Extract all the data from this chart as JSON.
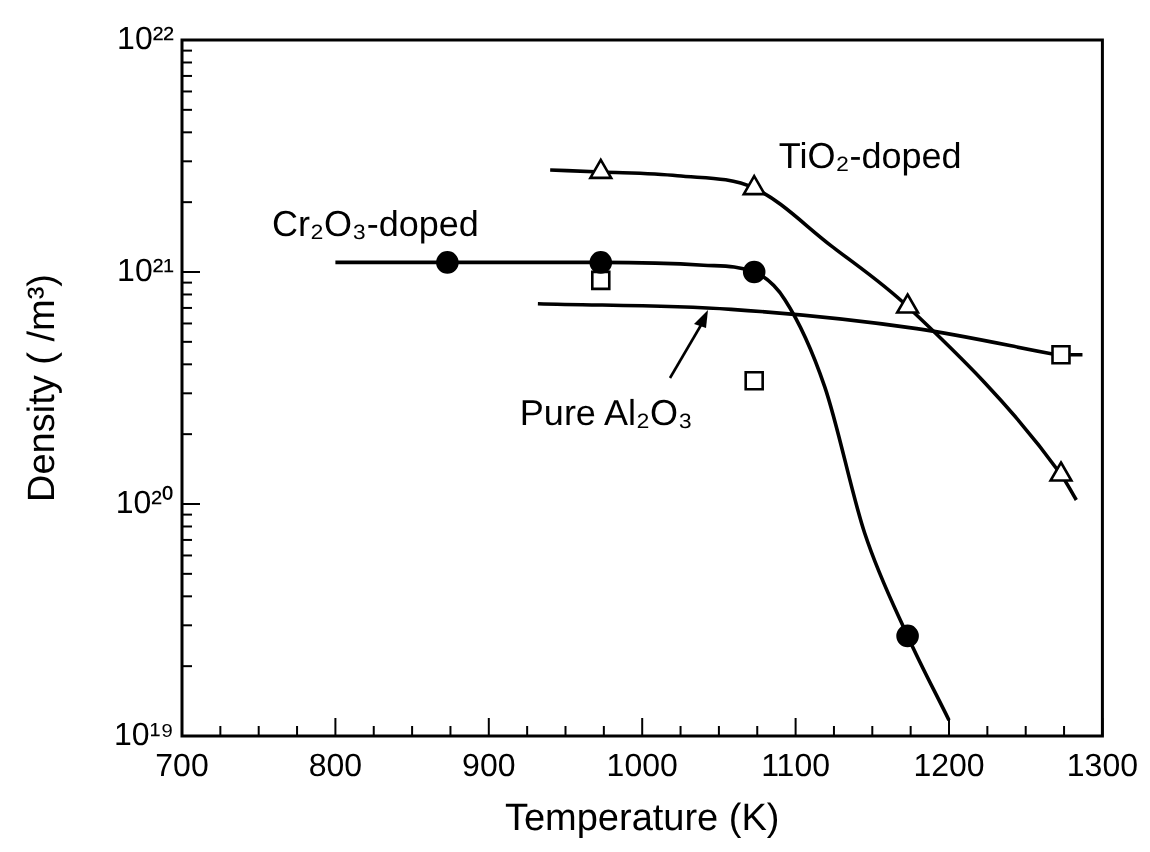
{
  "chart_data": {
    "type": "scatter",
    "xlabel": "Temperature (K)",
    "ylabel": "Density ( /m³)",
    "log": "y",
    "grid": false,
    "xlim": [
      700,
      1300
    ],
    "ylim": [
      1e+19,
      1e+22
    ],
    "xticks": [
      700,
      {
        "value": 725,
        "label": null
      },
      {
        "value": 750,
        "label": null
      },
      {
        "value": 775,
        "label": null
      },
      800,
      {
        "value": 825,
        "label": null
      },
      {
        "value": 850,
        "label": null
      },
      {
        "value": 875,
        "label": null
      },
      900,
      {
        "value": 925,
        "label": null
      },
      {
        "value": 950,
        "label": null
      },
      {
        "value": 975,
        "label": null
      },
      1000,
      {
        "value": 1025,
        "label": null
      },
      {
        "value": 1050,
        "label": null
      },
      {
        "value": 1075,
        "label": null
      },
      1100,
      {
        "value": 1125,
        "label": null
      },
      {
        "value": 1150,
        "label": null
      },
      {
        "value": 1175,
        "label": null
      },
      1200,
      {
        "value": 1225,
        "label": null
      },
      {
        "value": 1250,
        "label": null
      },
      {
        "value": 1275,
        "label": null
      },
      1300
    ],
    "yticks": [
      {
        "value": 1e+19,
        "label": "10¹⁹"
      },
      {
        "value": 2e+19,
        "label": null
      },
      {
        "value": 3e+19,
        "label": null
      },
      {
        "value": 4e+19,
        "label": null
      },
      {
        "value": 5e+19,
        "label": null
      },
      {
        "value": 6e+19,
        "label": null
      },
      {
        "value": 7e+19,
        "label": null
      },
      {
        "value": 8e+19,
        "label": null
      },
      {
        "value": 9e+19,
        "label": null
      },
      {
        "value": 1e+20,
        "label": "10²⁰"
      },
      {
        "value": 2e+20,
        "label": null
      },
      {
        "value": 3e+20,
        "label": null
      },
      {
        "value": 4e+20,
        "label": null
      },
      {
        "value": 5e+20,
        "label": null
      },
      {
        "value": 6e+20,
        "label": null
      },
      {
        "value": 7e+20,
        "label": null
      },
      {
        "value": 8e+20,
        "label": null
      },
      {
        "value": 9e+20,
        "label": null
      },
      {
        "value": 1e+21,
        "label": "10²¹"
      },
      {
        "value": 2e+21,
        "label": null
      },
      {
        "value": 3e+21,
        "label": null
      },
      {
        "value": 4e+21,
        "label": null
      },
      {
        "value": 5e+21,
        "label": null
      },
      {
        "value": 6e+21,
        "label": null
      },
      {
        "value": 7e+21,
        "label": null
      },
      {
        "value": 8e+21,
        "label": null
      },
      {
        "value": 9e+21,
        "label": null
      },
      {
        "value": 1e+22,
        "label": "10²²"
      }
    ],
    "series": [
      {
        "name": "Cr₂O₃-doped",
        "type": "scatter",
        "marker": "circle",
        "color": "#000000",
        "x": [
          873,
          973,
          1073,
          1173
        ],
        "values": [
          1.1e+21,
          1.1e+21,
          1e+21,
          2.7e+19
        ]
      },
      {
        "name": "TiO₂-doped",
        "type": "scatter",
        "marker": "triangle",
        "color": "#000000",
        "x": [
          973,
          1073,
          1173,
          1273
        ],
        "values": [
          2.7e+21,
          2.3e+21,
          7.1e+20,
          1.34e+20
        ]
      },
      {
        "name": "Pure Al₂O₃",
        "type": "scatter",
        "marker": "square",
        "color": "#000000",
        "x": [
          973,
          1073,
          1273
        ],
        "values": [
          9.2e+20,
          3.4e+20,
          4.4e+20
        ]
      },
      {
        "type": "line",
        "marker": "none",
        "color": "#000000",
        "x": [
          800,
          873,
          973,
          1040,
          1073,
          1093,
          1119,
          1145,
          1173,
          1200
        ],
        "values": [
          1.1e+21,
          1.1e+21,
          1.1e+21,
          1.07e+21,
          1e+21,
          7.6e+20,
          3.2e+20,
          7.5e+19,
          2.7e+19,
          1.17e+19
        ]
      },
      {
        "type": "line",
        "marker": "none",
        "color": "#000000",
        "x": [
          940,
          973,
          1023,
          1073,
          1123,
          1173,
          1273,
          1283
        ],
        "values": [
          2.75e+21,
          2.7e+21,
          2.6e+21,
          2.3e+21,
          1.3e+21,
          7.1e+20,
          1.34e+20,
          1.04e+20
        ]
      },
      {
        "type": "line",
        "marker": "none",
        "color": "#000000",
        "x": [
          932,
          1058,
          1179,
          1270
        ],
        "values": [
          7.3e+20,
          6.9e+20,
          5.7e+20,
          4.4e+20
        ]
      },
      {
        "type": "line",
        "marker": "none",
        "color": "#000000",
        "x": [
          1279,
          1287
        ],
        "values": [
          4.4e+20,
          4.4e+20
        ]
      }
    ]
  }
}
